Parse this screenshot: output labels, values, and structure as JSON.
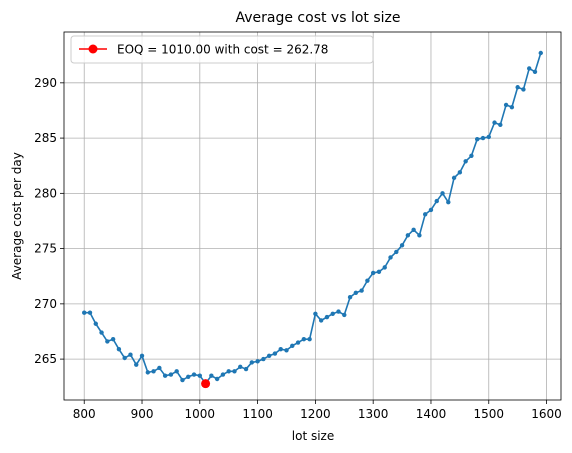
{
  "chart_data": {
    "type": "line",
    "title": "Average cost vs lot size",
    "xlabel": "lot size",
    "ylabel": "Average cost per day",
    "xlim": [
      765,
      1625
    ],
    "ylim": [
      261.3,
      294.6
    ],
    "xticks": [
      "800",
      "900",
      "1000",
      "1100",
      "1200",
      "1300",
      "1400",
      "1500",
      "1600"
    ],
    "yticks": [
      "265",
      "270",
      "275",
      "280",
      "285",
      "290"
    ],
    "grid": true,
    "legend_position": "top-left",
    "series_color": "#1f77b4",
    "highlight_color": "#ff0000",
    "series": [
      {
        "x": [
          800,
          810,
          820,
          830,
          840,
          850,
          860,
          870,
          880,
          890,
          900,
          910,
          920,
          930,
          940,
          950,
          960,
          970,
          980,
          990,
          1000,
          1010,
          1020,
          1030,
          1040,
          1050,
          1060,
          1070,
          1080,
          1090,
          1100,
          1110,
          1120,
          1130,
          1140,
          1150,
          1160,
          1170,
          1180,
          1190,
          1200,
          1210,
          1220,
          1230,
          1240,
          1250,
          1260,
          1270,
          1280,
          1290,
          1300,
          1310,
          1320,
          1330,
          1340,
          1350,
          1360,
          1370,
          1380,
          1390,
          1400,
          1410,
          1420,
          1430,
          1440,
          1450,
          1460,
          1470,
          1480,
          1490,
          1500,
          1510,
          1520,
          1530,
          1540,
          1550,
          1560,
          1570,
          1580,
          1590
        ],
        "values": [
          269.2,
          269.2,
          268.2,
          267.4,
          266.6,
          266.8,
          265.9,
          265.1,
          265.4,
          264.5,
          265.3,
          263.8,
          263.9,
          264.2,
          263.5,
          263.6,
          263.9,
          263.1,
          263.4,
          263.6,
          263.5,
          262.8,
          263.5,
          263.2,
          263.6,
          263.9,
          263.9,
          264.3,
          264.1,
          264.7,
          264.8,
          265.0,
          265.3,
          265.5,
          265.9,
          265.8,
          266.2,
          266.5,
          266.8,
          266.8,
          269.1,
          268.5,
          268.8,
          269.1,
          269.3,
          269.0,
          270.6,
          271.0,
          271.2,
          272.1,
          272.8,
          272.9,
          273.3,
          274.2,
          274.7,
          275.3,
          276.2,
          276.7,
          276.2,
          278.1,
          278.5,
          279.3,
          280.0,
          279.2,
          281.4,
          281.9,
          282.9,
          283.4,
          284.9,
          285.0,
          285.1,
          286.4,
          286.2,
          288.0,
          287.8,
          289.6,
          289.4,
          291.3,
          291.0,
          292.7
        ]
      }
    ],
    "highlight": {
      "label": "EOQ = 1010.00 with cost = 262.78",
      "x": 1010,
      "y": 262.78
    }
  }
}
